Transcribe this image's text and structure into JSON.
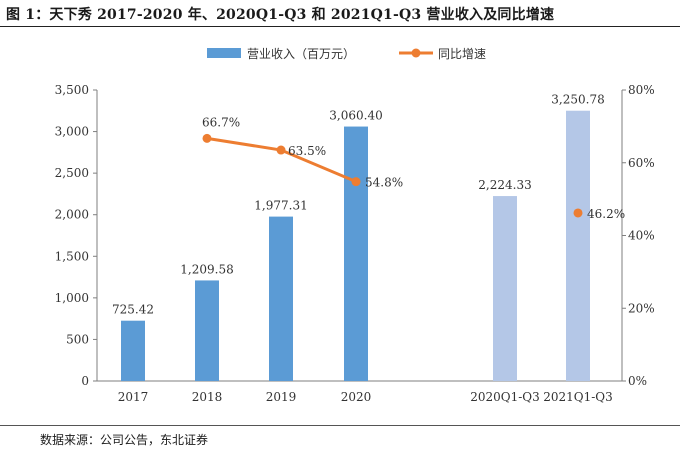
{
  "title": "图 1：天下秀 2017-2020 年、2020Q1-Q3 和 2021Q1-Q3 营业收入及同比增速",
  "source": "数据来源：公司公告，东北证券",
  "chart_data": {
    "type": "bar",
    "categories": [
      "2017",
      "2018",
      "2019",
      "2020",
      "2020Q1-Q3",
      "2021Q1-Q3"
    ],
    "series": [
      {
        "name": "营业收入（百万元）",
        "type": "bar",
        "axis": "left",
        "values": [
          725.42,
          1209.58,
          1977.31,
          3060.4,
          2224.33,
          3250.78
        ],
        "labels": [
          "725.42",
          "1,209.58",
          "1,977.31",
          "3,060.40",
          "2,224.33",
          "3,250.78"
        ],
        "colors": [
          "#5b9bd5",
          "#5b9bd5",
          "#5b9bd5",
          "#5b9bd5",
          "#b4c7e7",
          "#b4c7e7"
        ]
      },
      {
        "name": "同比增速",
        "type": "line",
        "axis": "right",
        "color": "#ed7d31",
        "values": [
          null,
          66.7,
          63.5,
          54.8,
          null,
          46.2
        ],
        "labels": [
          "",
          "66.7%",
          "63.5%",
          "54.8%",
          "",
          "46.2%"
        ],
        "segments": [
          [
            1,
            2,
            3
          ],
          [
            5
          ]
        ]
      }
    ],
    "y_left": {
      "lim": [
        0,
        3500
      ],
      "ticks": [
        0,
        500,
        1000,
        1500,
        2000,
        2500,
        3000,
        3500
      ],
      "tick_labels": [
        "0",
        "500",
        "1,000",
        "1,500",
        "2,000",
        "2,500",
        "3,000",
        "3,500"
      ]
    },
    "y_right": {
      "lim": [
        0,
        80
      ],
      "ticks": [
        0,
        20,
        40,
        60,
        80
      ],
      "tick_labels": [
        "0%",
        "20%",
        "40%",
        "60%",
        "80%"
      ]
    },
    "legend": "top-center",
    "grid": false
  }
}
